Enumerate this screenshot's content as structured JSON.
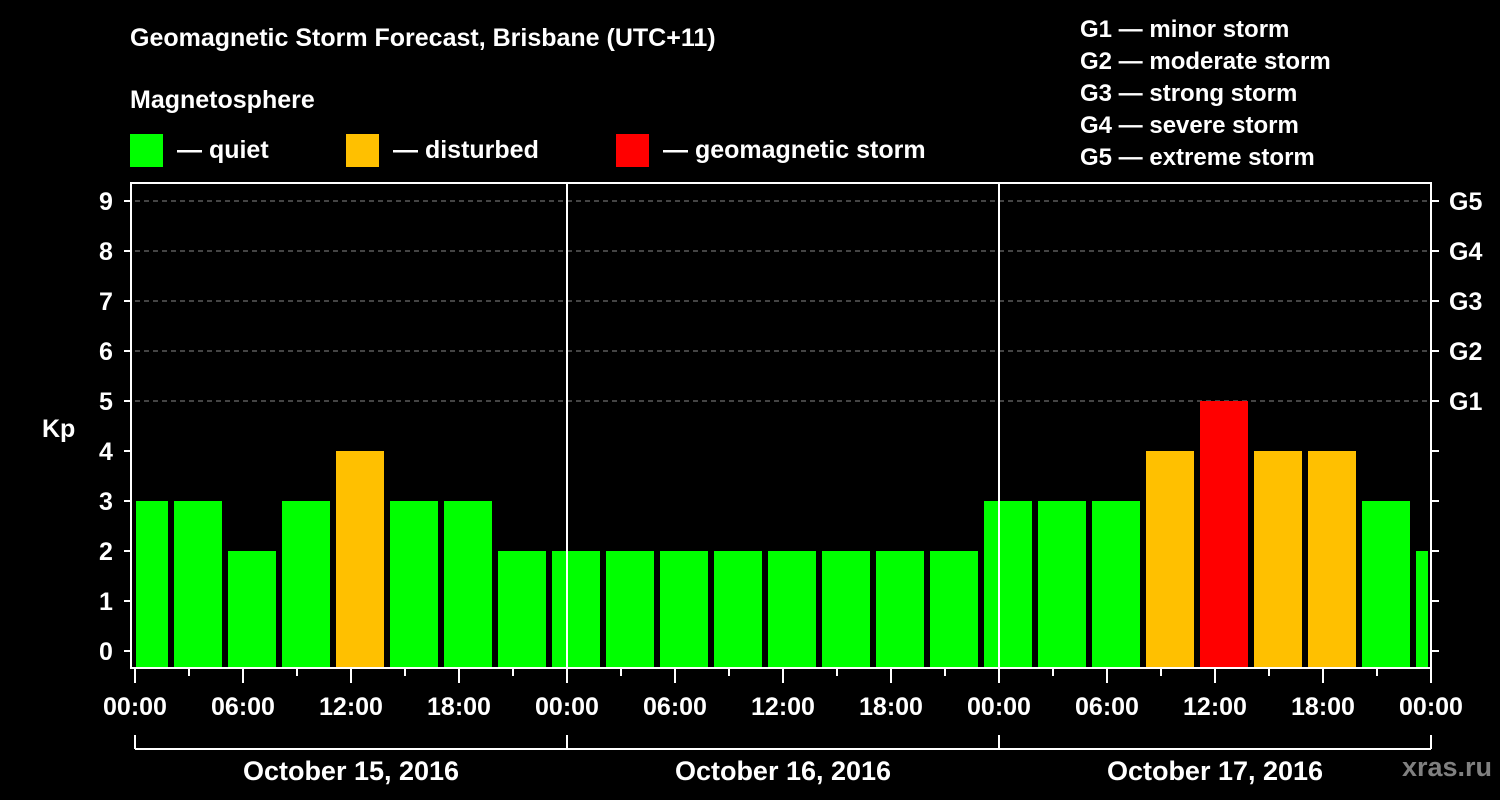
{
  "header": {
    "title": "Geomagnetic Storm Forecast, Brisbane (UTC+11)",
    "subtitle": "Magnetosphere"
  },
  "legend": [
    {
      "label": "— quiet",
      "color": "#00ff00"
    },
    {
      "label": "— disturbed",
      "color": "#ffc000"
    },
    {
      "label": "— geomagnetic storm",
      "color": "#ff0000"
    }
  ],
  "g_scale": [
    "G1 — minor storm",
    "G2 — moderate storm",
    "G3 — strong storm",
    "G4 — severe storm",
    "G5 — extreme storm"
  ],
  "watermark": "xras.ru",
  "colors": {
    "quiet": "#00ff00",
    "disturbed": "#ffc000",
    "storm": "#ff0000",
    "background": "#000000",
    "axis": "#ffffff",
    "grid": "#888888",
    "watermark": "#808080"
  },
  "chart_data": {
    "type": "bar",
    "title": "Geomagnetic Storm Forecast, Brisbane (UTC+11)",
    "xlabel": "",
    "ylabel": "Kp",
    "ylim": [
      0,
      9
    ],
    "yticks": [
      0,
      1,
      2,
      3,
      4,
      5,
      6,
      7,
      8,
      9
    ],
    "right_axis_labels": [
      {
        "kp": 5,
        "label": "G1"
      },
      {
        "kp": 6,
        "label": "G2"
      },
      {
        "kp": 7,
        "label": "G3"
      },
      {
        "kp": 8,
        "label": "G4"
      },
      {
        "kp": 9,
        "label": "G5"
      }
    ],
    "grid": {
      "y": true,
      "style": "dashed",
      "from_kp": 5
    },
    "x_tick_labels": [
      "00:00",
      "06:00",
      "12:00",
      "18:00",
      "00:00",
      "06:00",
      "12:00",
      "18:00",
      "00:00",
      "06:00",
      "12:00",
      "18:00",
      "00:00"
    ],
    "days": [
      "October 15, 2016",
      "October 16, 2016",
      "October 17, 2016"
    ],
    "interval_hours": 3,
    "categories": [
      "Oct 15 00:00",
      "Oct 15 03:00",
      "Oct 15 06:00",
      "Oct 15 09:00",
      "Oct 15 12:00",
      "Oct 15 15:00",
      "Oct 15 18:00",
      "Oct 15 21:00",
      "Oct 16 00:00",
      "Oct 16 03:00",
      "Oct 16 06:00",
      "Oct 16 09:00",
      "Oct 16 12:00",
      "Oct 16 15:00",
      "Oct 16 18:00",
      "Oct 16 21:00",
      "Oct 17 00:00",
      "Oct 17 03:00",
      "Oct 17 06:00",
      "Oct 17 09:00",
      "Oct 17 12:00",
      "Oct 17 15:00",
      "Oct 17 18:00",
      "Oct 17 21:00",
      "Oct 18 00:00"
    ],
    "values": [
      3,
      3,
      2,
      3,
      4,
      3,
      3,
      2,
      2,
      2,
      2,
      2,
      2,
      2,
      2,
      2,
      3,
      3,
      3,
      4,
      5,
      4,
      4,
      3,
      2
    ],
    "status": [
      "quiet",
      "quiet",
      "quiet",
      "quiet",
      "disturbed",
      "quiet",
      "quiet",
      "quiet",
      "quiet",
      "quiet",
      "quiet",
      "quiet",
      "quiet",
      "quiet",
      "quiet",
      "quiet",
      "quiet",
      "quiet",
      "quiet",
      "disturbed",
      "storm",
      "disturbed",
      "disturbed",
      "quiet",
      "quiet"
    ],
    "legend": [
      "quiet",
      "disturbed",
      "geomagnetic storm"
    ]
  }
}
